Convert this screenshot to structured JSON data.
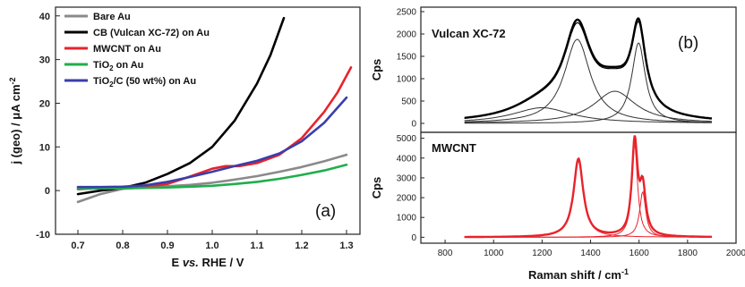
{
  "chart_data": [
    {
      "type": "line",
      "panel_label": "(a)",
      "xlabel_parts": [
        "E ",
        "vs.",
        " RHE / V"
      ],
      "ylabel_parts": [
        "j (geo) / μA cm",
        "-2"
      ],
      "xlim": [
        0.65,
        1.33
      ],
      "ylim": [
        -10,
        42
      ],
      "xticks": [
        "0.7",
        "0.8",
        "0.9",
        "1.0",
        "1.1",
        "1.2",
        "1.3"
      ],
      "yticks": [
        "-10",
        "0",
        "10",
        "20",
        "30",
        "40"
      ],
      "legend_position": "top-left",
      "series": [
        {
          "name": "Bare Au",
          "name_parts": [
            "Bare Au"
          ],
          "color": "#8a8a8a",
          "x": [
            0.7,
            0.75,
            0.8,
            0.85,
            0.9,
            0.95,
            1.0,
            1.05,
            1.1,
            1.15,
            1.2,
            1.25,
            1.3
          ],
          "y": [
            -2.6,
            -0.8,
            0.4,
            0.8,
            1.0,
            1.3,
            1.8,
            2.5,
            3.3,
            4.3,
            5.4,
            6.7,
            8.2
          ]
        },
        {
          "name": "CB (Vulcan XC-72) on Au",
          "name_parts": [
            "CB (Vulcan XC-72) on Au"
          ],
          "color": "#000000",
          "x": [
            0.7,
            0.75,
            0.8,
            0.85,
            0.9,
            0.95,
            1.0,
            1.05,
            1.1,
            1.13,
            1.16
          ],
          "y": [
            -0.8,
            0.0,
            0.6,
            1.8,
            3.8,
            6.3,
            10.0,
            16.0,
            24.5,
            31.0,
            39.5
          ]
        },
        {
          "name": "MWCNT on Au",
          "name_parts": [
            "MWCNT on Au"
          ],
          "color": "#e8232a",
          "x": [
            0.7,
            0.75,
            0.8,
            0.85,
            0.9,
            0.95,
            1.0,
            1.03,
            1.06,
            1.1,
            1.15,
            1.2,
            1.25,
            1.28,
            1.31
          ],
          "y": [
            0.3,
            0.6,
            0.8,
            0.9,
            1.5,
            3.2,
            5.0,
            5.6,
            5.6,
            6.3,
            8.2,
            12.0,
            18.0,
            22.5,
            28.2
          ]
        },
        {
          "name": "TiO2 on Au",
          "name_parts": [
            "TiO",
            "2",
            " on Au"
          ],
          "color": "#1fae4b",
          "x": [
            0.7,
            0.75,
            0.8,
            0.85,
            0.9,
            0.95,
            1.0,
            1.05,
            1.1,
            1.15,
            1.2,
            1.25,
            1.3
          ],
          "y": [
            0.4,
            0.5,
            0.5,
            0.6,
            0.7,
            0.9,
            1.1,
            1.5,
            2.0,
            2.7,
            3.6,
            4.6,
            5.9
          ]
        },
        {
          "name": "TiO2/C (50 wt%) on Au",
          "name_parts": [
            "TiO",
            "2",
            "/C (50 wt%) on Au"
          ],
          "color": "#3a3eaa",
          "x": [
            0.7,
            0.75,
            0.8,
            0.85,
            0.9,
            0.95,
            1.0,
            1.05,
            1.1,
            1.15,
            1.2,
            1.25,
            1.3
          ],
          "y": [
            0.8,
            0.8,
            0.9,
            1.2,
            2.0,
            3.1,
            4.3,
            5.6,
            6.8,
            8.5,
            11.3,
            15.5,
            21.3
          ]
        }
      ]
    },
    {
      "type": "line",
      "panel_label": "(b)",
      "subplot_title": "Vulcan XC-72",
      "ylabel": "Cps",
      "xlim": [
        700,
        2000
      ],
      "ylim": [
        -200,
        2600
      ],
      "yticks": [
        "0",
        "500",
        "1000",
        "1500",
        "2000",
        "2500"
      ],
      "peaks": [
        {
          "center": 1200,
          "height": 350,
          "width": 300
        },
        {
          "center": 1345,
          "height": 1880,
          "width": 130
        },
        {
          "center": 1500,
          "height": 720,
          "width": 210
        },
        {
          "center": 1598,
          "height": 1800,
          "width": 68
        }
      ],
      "x_range": [
        880,
        1900
      ],
      "series": [
        {
          "name": "",
          "color": "#000000",
          "role": "measured"
        },
        {
          "name": "",
          "color": "#333333",
          "role": "fitted peaks"
        }
      ]
    },
    {
      "type": "line",
      "subplot_title": "MWCNT",
      "ylabel": "Cps",
      "xlabel_parts": [
        "Raman shift / cm",
        "-1"
      ],
      "xlim": [
        700,
        2000
      ],
      "ylim": [
        -300,
        5300
      ],
      "xticks": [
        "800",
        "1000",
        "1200",
        "1400",
        "1600",
        "1800",
        "2000"
      ],
      "yticks": [
        "0",
        "1000",
        "2000",
        "3000",
        "4000",
        "5000"
      ],
      "peaks": [
        {
          "center": 1350,
          "height": 3950,
          "width": 48
        },
        {
          "center": 1582,
          "height": 4700,
          "width": 28
        },
        {
          "center": 1615,
          "height": 2300,
          "width": 30
        }
      ],
      "x_range": [
        880,
        1900
      ],
      "series": [
        {
          "name": "",
          "color": "#e8232a",
          "role": "measured"
        },
        {
          "name": "",
          "color": "#e8232a",
          "role": "fitted peaks"
        }
      ]
    }
  ]
}
